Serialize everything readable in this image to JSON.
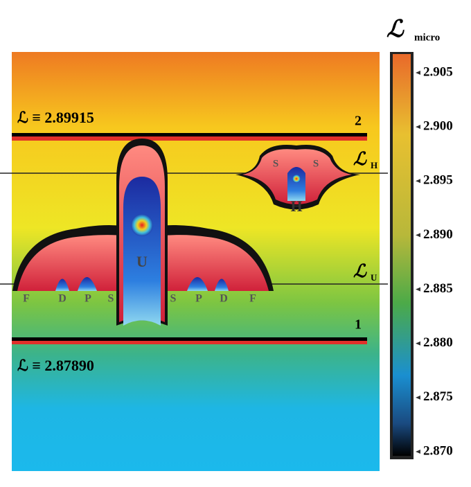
{
  "colorbar": {
    "title": "ℒ",
    "subtitle": "micro",
    "ticks": [
      "2.905",
      "2.900",
      "2.895",
      "2.890",
      "2.885",
      "2.880",
      "2.875",
      "2.870"
    ]
  },
  "levels": [
    {
      "label": "ℒ ≡ 2.89915",
      "index": "2"
    },
    {
      "label": "ℒ ≡ 2.87890",
      "index": "1"
    }
  ],
  "markers": [
    {
      "symbol": "ℒ",
      "sub": "H"
    },
    {
      "symbol": "ℒ",
      "sub": "U"
    }
  ],
  "u_structure": {
    "center": "U",
    "orbitals": [
      "F",
      "D",
      "P",
      "S",
      "S",
      "P",
      "D",
      "F"
    ]
  },
  "h_structure": {
    "center": "H",
    "orbitals": [
      "S",
      "S"
    ]
  }
}
